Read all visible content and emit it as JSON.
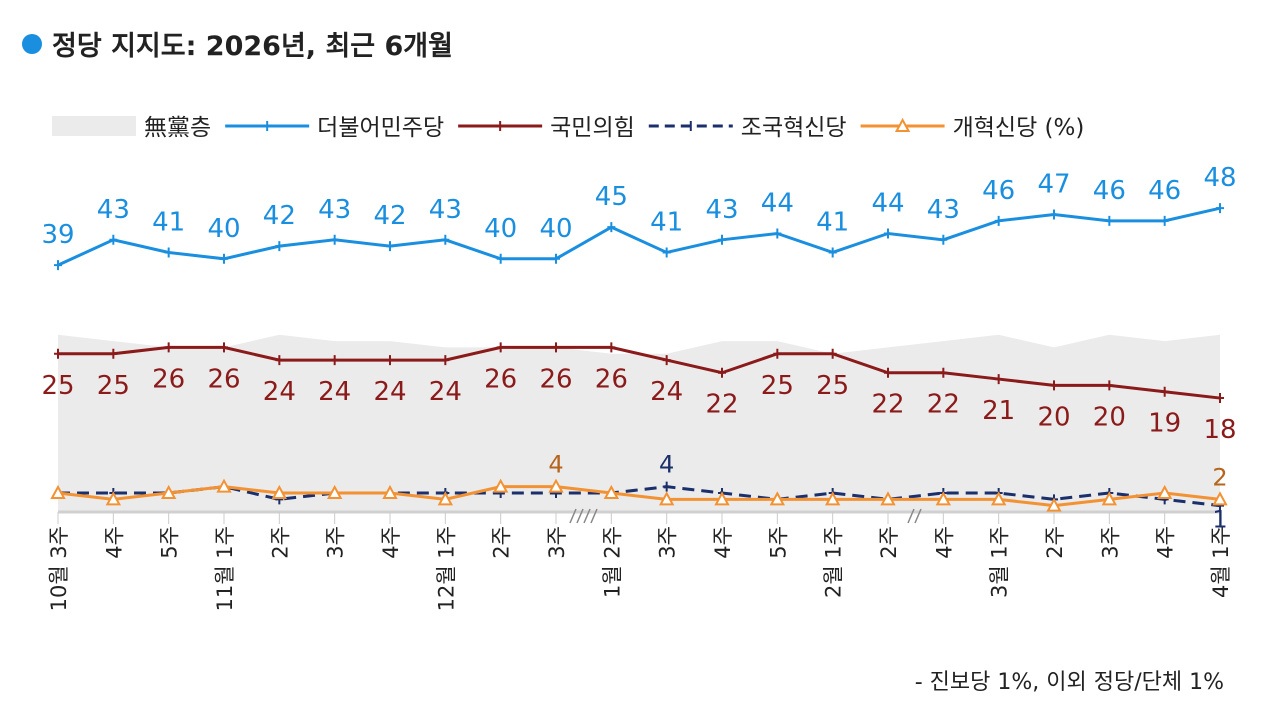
{
  "title": "정당 지지도: 2026년, 최근 6개월",
  "footnote": "- 진보당 1%, 이외 정당/단체 1%",
  "chart_data": {
    "type": "line",
    "title": "정당 지지도: 2026년, 최근 6개월",
    "unit_label": "(%)",
    "ylim": [
      0,
      50
    ],
    "categories": [
      "10월 3주",
      "4주",
      "5주",
      "11월 1주",
      "2주",
      "3주",
      "4주",
      "12월 1주",
      "2주",
      "3주",
      "1월 2주",
      "3주",
      "4주",
      "5주",
      "2월 1주",
      "2주",
      "4주",
      "3월 1주",
      "2주",
      "3주",
      "4주",
      "4월 1주"
    ],
    "series": [
      {
        "name": "無黨층",
        "type": "area",
        "color": "#ebebeb",
        "values": [
          28,
          27,
          26,
          26,
          28,
          27,
          27,
          26,
          26,
          26,
          25,
          25,
          27,
          27,
          25,
          26,
          27,
          28,
          26,
          28,
          27,
          28
        ],
        "labels": false
      },
      {
        "name": "더불어민주당",
        "color": "#1a8fe0",
        "values": [
          39,
          43,
          41,
          40,
          42,
          43,
          42,
          43,
          40,
          40,
          45,
          41,
          43,
          44,
          41,
          44,
          43,
          46,
          47,
          46,
          46,
          48
        ],
        "labels": "above"
      },
      {
        "name": "국민의힘",
        "color": "#8b1a1a",
        "values": [
          25,
          25,
          26,
          26,
          24,
          24,
          24,
          24,
          26,
          26,
          26,
          24,
          22,
          25,
          25,
          22,
          22,
          21,
          20,
          20,
          19,
          18
        ],
        "labels": "below"
      },
      {
        "name": "조국혁신당",
        "color": "#1b2f6b",
        "dash": true,
        "values": [
          3,
          3,
          3,
          4,
          2,
          3,
          3,
          3,
          3,
          3,
          3,
          4,
          3,
          2,
          3,
          2,
          3,
          3,
          2,
          3,
          2,
          1
        ],
        "labeled_points": {
          "11": "4",
          "21": "1"
        }
      },
      {
        "name": "개혁신당",
        "color": "#f39233",
        "marker": "triangle",
        "values": [
          3,
          2,
          3,
          4,
          3,
          3,
          3,
          2,
          4,
          4,
          3,
          2,
          2,
          2,
          2,
          2,
          2,
          2,
          1,
          2,
          3,
          2
        ],
        "labeled_points": {
          "9": "4",
          "21": "2"
        }
      }
    ]
  }
}
